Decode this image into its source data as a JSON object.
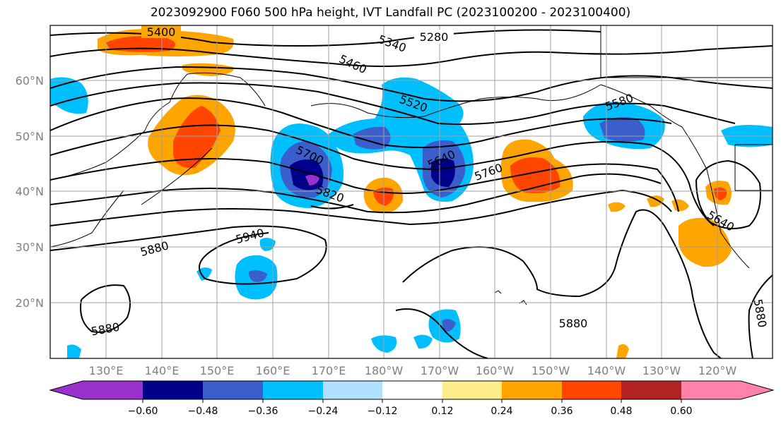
{
  "title": "2023092900 F060 500 hPa height, IVT Landfall PC (2023100200 - 2023100400)",
  "lat_labels": [
    "60°N",
    "50°N",
    "40°N",
    "30°N",
    "20°N"
  ],
  "lon_labels": [
    "130°E",
    "140°E",
    "150°E",
    "160°E",
    "170°E",
    "180°W",
    "170°W",
    "160°W",
    "150°W",
    "140°W",
    "130°W",
    "120°W"
  ],
  "contour_labels": [
    "5400",
    "5280",
    "5340",
    "5460",
    "5520",
    "5580",
    "5700",
    "5640",
    "5760",
    "5820",
    "5940",
    "5880",
    "5880",
    "5880",
    "5640",
    "5880"
  ],
  "colorbar": {
    "colors": [
      "#9932cc",
      "#00008b",
      "#3a5fcd",
      "#00bfff",
      "#b0e2ff",
      "#ffffff",
      "#ffec8b",
      "#ffa500",
      "#ff4500",
      "#b22222",
      "#ff82ab"
    ],
    "tick_labels": [
      "−0.60",
      "−0.48",
      "−0.36",
      "−0.24",
      "−0.12",
      "0.12",
      "0.24",
      "0.36",
      "0.48",
      "0.60"
    ]
  },
  "colors": {
    "grid": "#a0a0a0",
    "contour": "#000000",
    "frame": "#000000"
  }
}
